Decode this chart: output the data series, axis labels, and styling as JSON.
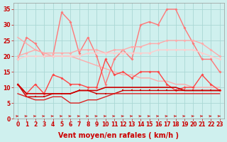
{
  "background_color": "#cff0ee",
  "grid_color": "#aad8d4",
  "xlabel": "Vent moyen/en rafales ( km/h )",
  "xlabel_color": "#cc0000",
  "xlabel_fontsize": 7,
  "ylim": [
    0,
    37
  ],
  "xlim": [
    -0.5,
    23.5
  ],
  "series": [
    {
      "name": "rafales_peak",
      "color": "#ff7777",
      "lw": 1.0,
      "marker": "D",
      "ms": 2.0,
      "y": [
        19,
        26,
        24,
        20,
        20,
        34,
        31,
        21,
        26,
        20,
        11,
        19,
        22,
        19,
        30,
        31,
        30,
        35,
        35,
        29,
        24,
        19,
        19,
        15
      ]
    },
    {
      "name": "diagonal_line",
      "color": "#ffaaaa",
      "lw": 1.0,
      "marker": null,
      "ms": 0,
      "y": [
        26,
        24,
        22,
        21,
        20,
        20,
        20,
        19,
        18,
        17,
        16,
        15,
        14,
        14,
        13,
        13,
        12,
        12,
        11,
        11,
        10,
        10,
        10,
        10
      ]
    },
    {
      "name": "rafales_avg_upper",
      "color": "#ffaaaa",
      "lw": 1.0,
      "marker": "D",
      "ms": 2.0,
      "y": [
        20,
        21,
        22,
        21,
        21,
        21,
        21,
        22,
        22,
        22,
        21,
        22,
        22,
        23,
        23,
        24,
        24,
        25,
        25,
        25,
        25,
        24,
        22,
        20
      ]
    },
    {
      "name": "rafales_avg_lower",
      "color": "#ffcccc",
      "lw": 1.0,
      "marker": "D",
      "ms": 2.0,
      "y": [
        19,
        20,
        20,
        20,
        20,
        20,
        20,
        20,
        21,
        21,
        21,
        21,
        21,
        21,
        21,
        21,
        22,
        22,
        22,
        22,
        22,
        21,
        20,
        19
      ]
    },
    {
      "name": "vent_max_spiky",
      "color": "#ff4444",
      "lw": 1.0,
      "marker": "D",
      "ms": 2.0,
      "y": [
        11,
        8,
        11,
        8,
        14,
        13,
        11,
        11,
        10,
        10,
        19,
        14,
        15,
        13,
        15,
        15,
        15,
        11,
        9,
        10,
        10,
        14,
        11,
        9
      ]
    },
    {
      "name": "vent_avg_flat",
      "color": "#cc0000",
      "lw": 1.2,
      "marker": null,
      "ms": 0,
      "y": [
        11,
        8,
        8,
        8,
        8,
        8,
        8,
        9,
        9,
        9,
        10,
        10,
        10,
        10,
        10,
        10,
        10,
        10,
        10,
        9,
        9,
        9,
        9,
        9
      ]
    },
    {
      "name": "vent_moy",
      "color": "#cc0000",
      "lw": 1.0,
      "marker": "s",
      "ms": 2.0,
      "y": [
        11,
        7,
        7,
        7,
        8,
        8,
        8,
        9,
        9,
        8,
        8,
        8,
        9,
        9,
        9,
        9,
        9,
        9,
        9,
        9,
        9,
        9,
        9,
        9
      ]
    },
    {
      "name": "vent_min",
      "color": "#dd2222",
      "lw": 1.0,
      "marker": null,
      "ms": 0,
      "y": [
        8,
        7,
        6,
        6,
        7,
        7,
        5,
        5,
        6,
        6,
        7,
        8,
        8,
        8,
        8,
        8,
        8,
        8,
        8,
        8,
        8,
        8,
        8,
        8
      ]
    }
  ],
  "xtick_labels": [
    "0",
    "1",
    "2",
    "3",
    "4",
    "5",
    "6",
    "7",
    "8",
    "9",
    "10",
    "11",
    "12",
    "13",
    "14",
    "15",
    "16",
    "17",
    "18",
    "19",
    "20",
    "21",
    "22",
    "23"
  ],
  "ytick_labels": [
    "0",
    "5",
    "10",
    "15",
    "20",
    "25",
    "30",
    "35"
  ],
  "yticks": [
    0,
    5,
    10,
    15,
    20,
    25,
    30,
    35
  ],
  "tick_color": "#cc0000",
  "tick_fontsize": 5.5,
  "arrow_color": "#cc0000"
}
